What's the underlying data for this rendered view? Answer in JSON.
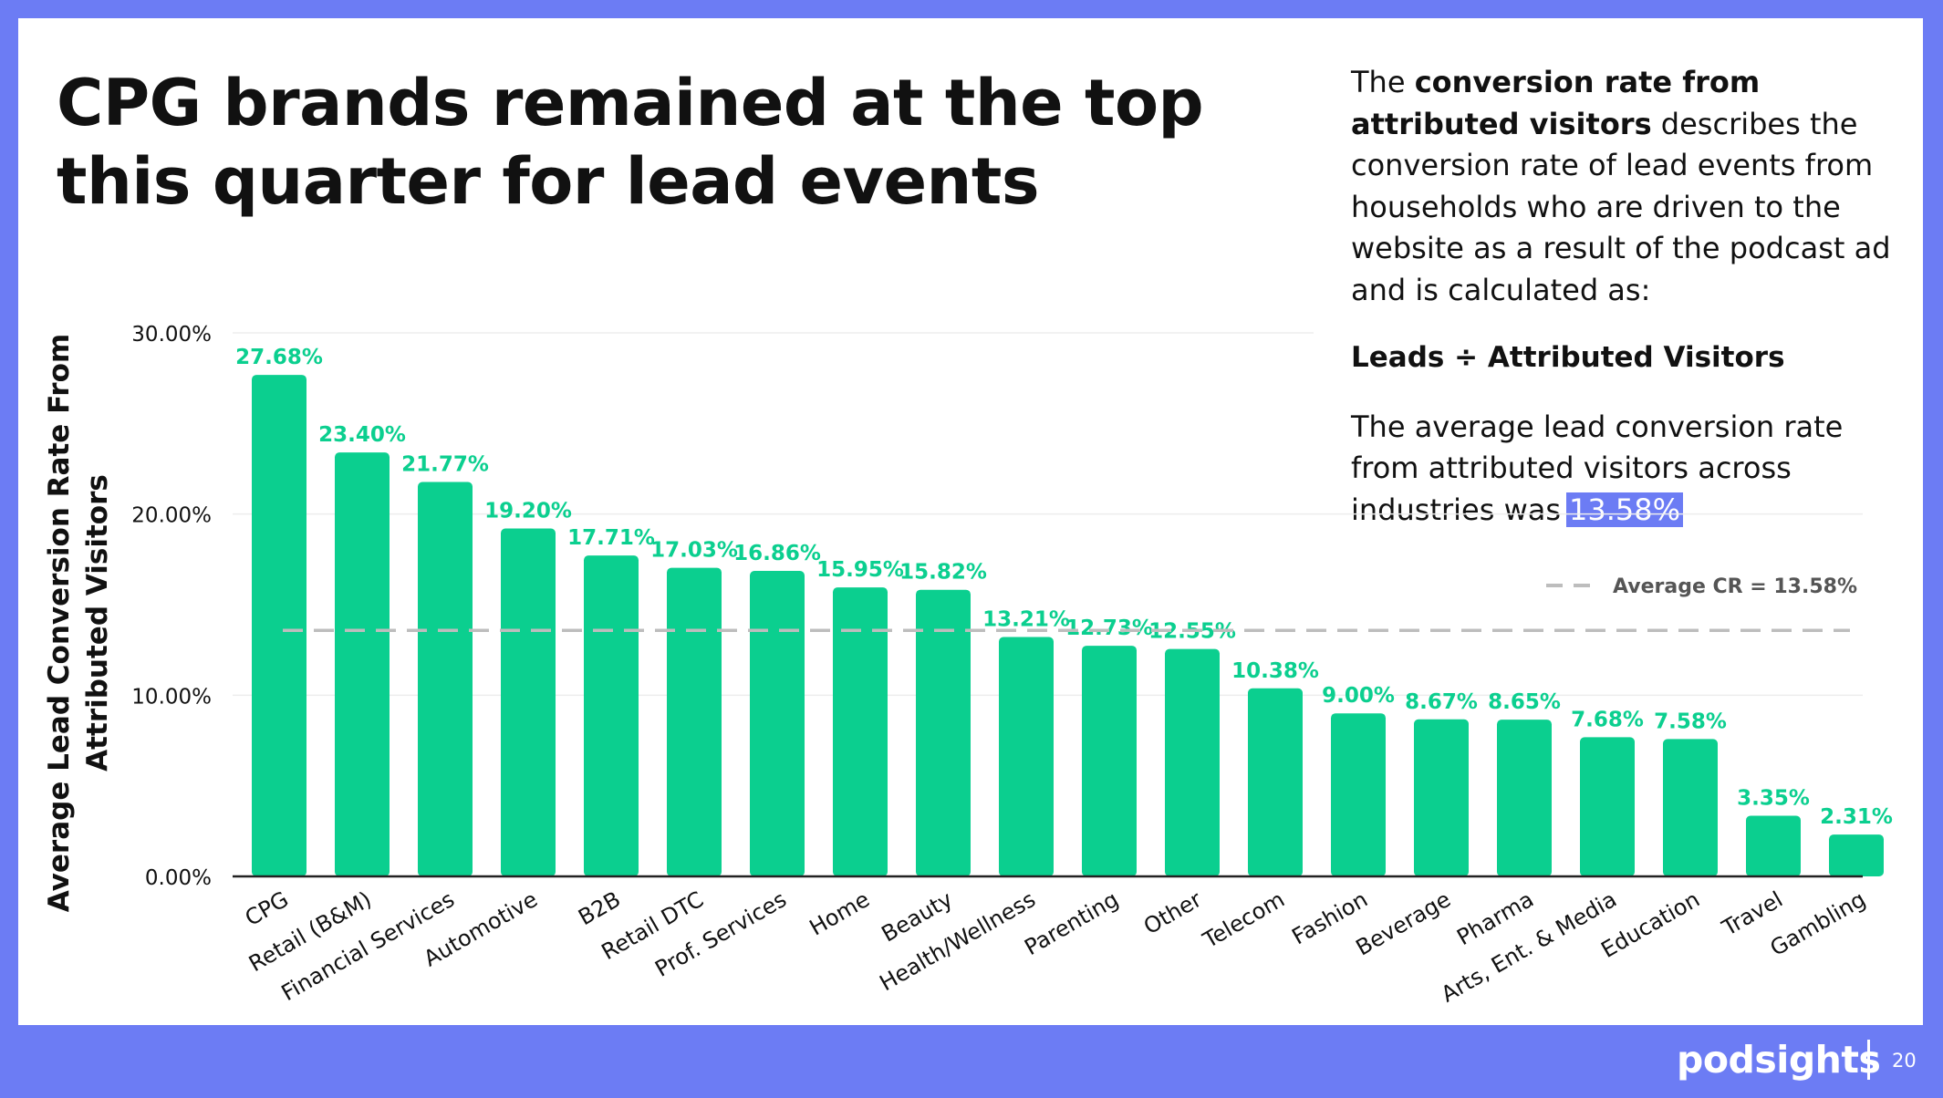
{
  "slide": {
    "title": "CPG brands remained at the top this quarter for lead events",
    "page_number": "20",
    "brand": "podsights"
  },
  "sidebar": {
    "p1_pre": "The ",
    "p1_bold": "conversion rate from attributed visitors",
    "p1_post": " describes the conversion rate of lead events from households who are driven to the website as a result of the podcast ad and is calculated as:",
    "formula": "Leads ÷ Attributed Visitors",
    "avg_text": "The average lead conversion rate from attributed visitors across industries was",
    "avg_value": "13.58%"
  },
  "colors": {
    "bar": "#0BCF8F",
    "label": "#0BCF8F",
    "accent": "#6C7CF4",
    "average_line": "#BDBDBD"
  },
  "chart_data": {
    "type": "bar",
    "title": "",
    "xlabel": "",
    "ylabel": "Average Lead Conversion Rate From Attributed Visitors",
    "ylabel_lines": [
      "Average Lead Conversion Rate From",
      "Attributed Visitors"
    ],
    "ylim": [
      0,
      30
    ],
    "yticks": [
      0,
      10,
      20,
      30
    ],
    "ytick_labels": [
      "0.00%",
      "10.00%",
      "20.00%",
      "30.00%"
    ],
    "categories": [
      "CPG",
      "Retail (B&M)",
      "Financial Services",
      "Automotive",
      "B2B",
      "Retail DTC",
      "Prof. Services",
      "Home",
      "Beauty",
      "Health/Wellness",
      "Parenting",
      "Other",
      "Telecom",
      "Fashion",
      "Beverage",
      "Pharma",
      "Arts, Ent. & Media",
      "Education",
      "Travel",
      "Gambling"
    ],
    "values": [
      27.68,
      23.4,
      21.77,
      19.2,
      17.71,
      17.03,
      16.86,
      15.95,
      15.82,
      13.21,
      12.73,
      12.55,
      10.38,
      9.0,
      8.67,
      8.65,
      7.68,
      7.58,
      3.35,
      2.31
    ],
    "value_labels": [
      "27.68%",
      "23.40%",
      "21.77%",
      "19.20%",
      "17.71%",
      "17.03%",
      "16.86%",
      "15.95%",
      "15.82%",
      "13.21%",
      "12.73%",
      "12.55%",
      "10.38%",
      "9.00%",
      "8.67%",
      "8.65%",
      "7.68%",
      "7.58%",
      "3.35%",
      "2.31%"
    ],
    "average": 13.58,
    "average_label": "Average CR = 13.58%",
    "legend": "top-right"
  }
}
